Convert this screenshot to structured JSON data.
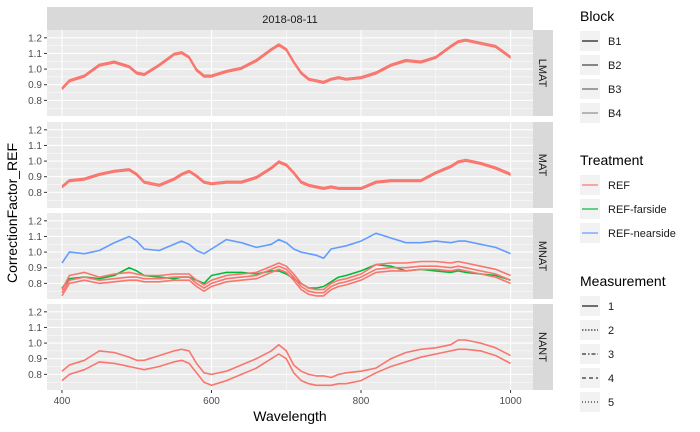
{
  "chart_data": {
    "type": "line",
    "facet_top_label": "2018-08-11",
    "xlabel": "Wavelength",
    "ylabel": "CorrectionFactor_REF",
    "xlim": [
      380,
      1030
    ],
    "ylim": [
      0.7,
      1.25
    ],
    "x_ticks": [
      400,
      600,
      800,
      1000
    ],
    "y_ticks": [
      0.8,
      0.9,
      1.0,
      1.1,
      1.2
    ],
    "y_tick_labels": [
      "0.8",
      "0.9",
      "1.0",
      "1.1",
      "1.2"
    ],
    "grid": true,
    "legend_position": "right",
    "legend": {
      "block": {
        "title": "Block",
        "items": [
          "B1",
          "B2",
          "B3",
          "B4"
        ]
      },
      "treatment": {
        "title": "Treatment",
        "items": [
          {
            "label": "REF",
            "color": "#F8766D"
          },
          {
            "label": "REF-farside",
            "color": "#00BA38"
          },
          {
            "label": "REF-nearside",
            "color": "#619CFF"
          }
        ]
      },
      "measurement": {
        "title": "Measurement",
        "items": [
          "1",
          "2",
          "3",
          "4",
          "5"
        ]
      }
    },
    "wavelengths": [
      400,
      410,
      430,
      450,
      470,
      490,
      500,
      510,
      530,
      550,
      560,
      570,
      580,
      590,
      600,
      620,
      640,
      660,
      680,
      690,
      700,
      710,
      720,
      730,
      740,
      750,
      760,
      770,
      780,
      800,
      820,
      840,
      860,
      880,
      900,
      920,
      930,
      940,
      960,
      980,
      1000
    ],
    "panels": [
      {
        "strip": "LMAT",
        "series": [
          {
            "treatment": "REF",
            "color": "#F8766D",
            "values": [
              0.88,
              0.93,
              0.96,
              1.03,
              1.05,
              1.02,
              0.98,
              0.97,
              1.03,
              1.1,
              1.11,
              1.08,
              1.0,
              0.96,
              0.96,
              0.99,
              1.01,
              1.06,
              1.13,
              1.16,
              1.13,
              1.05,
              0.98,
              0.94,
              0.93,
              0.92,
              0.94,
              0.95,
              0.94,
              0.95,
              0.98,
              1.03,
              1.06,
              1.05,
              1.08,
              1.15,
              1.18,
              1.19,
              1.17,
              1.15,
              1.08
            ]
          },
          {
            "treatment": "REF",
            "color": "#F8766D",
            "values": [
              0.87,
              0.92,
              0.95,
              1.02,
              1.04,
              1.01,
              0.97,
              0.96,
              1.02,
              1.09,
              1.1,
              1.07,
              0.99,
              0.95,
              0.95,
              0.98,
              1.0,
              1.05,
              1.12,
              1.15,
              1.12,
              1.04,
              0.97,
              0.93,
              0.92,
              0.91,
              0.93,
              0.94,
              0.93,
              0.94,
              0.97,
              1.02,
              1.05,
              1.04,
              1.07,
              1.14,
              1.17,
              1.18,
              1.16,
              1.14,
              1.07
            ]
          }
        ]
      },
      {
        "strip": "MAT",
        "series": [
          {
            "treatment": "REF",
            "color": "#F8766D",
            "values": [
              0.84,
              0.88,
              0.89,
              0.92,
              0.94,
              0.95,
              0.92,
              0.87,
              0.85,
              0.89,
              0.92,
              0.94,
              0.91,
              0.87,
              0.86,
              0.87,
              0.87,
              0.9,
              0.96,
              1.0,
              0.98,
              0.93,
              0.87,
              0.85,
              0.84,
              0.83,
              0.84,
              0.83,
              0.83,
              0.83,
              0.87,
              0.88,
              0.88,
              0.88,
              0.93,
              0.97,
              1.0,
              1.01,
              0.99,
              0.96,
              0.92
            ]
          },
          {
            "treatment": "REF",
            "color": "#F8766D",
            "values": [
              0.83,
              0.87,
              0.88,
              0.91,
              0.93,
              0.94,
              0.91,
              0.86,
              0.84,
              0.88,
              0.91,
              0.93,
              0.9,
              0.86,
              0.85,
              0.86,
              0.86,
              0.89,
              0.95,
              0.99,
              0.97,
              0.92,
              0.86,
              0.84,
              0.83,
              0.82,
              0.83,
              0.82,
              0.82,
              0.82,
              0.86,
              0.87,
              0.87,
              0.87,
              0.92,
              0.96,
              0.99,
              1.0,
              0.98,
              0.95,
              0.91
            ]
          }
        ]
      },
      {
        "strip": "MNAT",
        "series": [
          {
            "treatment": "REF-nearside",
            "color": "#619CFF",
            "values": [
              0.93,
              1.0,
              0.99,
              1.01,
              1.06,
              1.1,
              1.07,
              1.02,
              1.01,
              1.05,
              1.07,
              1.05,
              1.01,
              0.99,
              1.02,
              1.08,
              1.06,
              1.03,
              1.05,
              1.08,
              1.06,
              1.02,
              1.0,
              0.99,
              0.98,
              0.96,
              1.02,
              1.03,
              1.04,
              1.07,
              1.12,
              1.09,
              1.06,
              1.06,
              1.07,
              1.06,
              1.07,
              1.07,
              1.05,
              1.03,
              0.99
            ]
          },
          {
            "treatment": "REF-farside",
            "color": "#00BA38",
            "values": [
              0.77,
              0.83,
              0.84,
              0.83,
              0.85,
              0.9,
              0.88,
              0.85,
              0.84,
              0.83,
              0.84,
              0.84,
              0.82,
              0.8,
              0.85,
              0.87,
              0.87,
              0.86,
              0.88,
              0.88,
              0.86,
              0.83,
              0.8,
              0.77,
              0.77,
              0.78,
              0.81,
              0.84,
              0.85,
              0.88,
              0.92,
              0.91,
              0.88,
              0.89,
              0.88,
              0.87,
              0.88,
              0.87,
              0.86,
              0.85,
              0.82
            ]
          },
          {
            "treatment": "REF",
            "color": "#F8766D",
            "values": [
              0.76,
              0.85,
              0.87,
              0.84,
              0.86,
              0.87,
              0.86,
              0.85,
              0.85,
              0.86,
              0.86,
              0.86,
              0.82,
              0.79,
              0.82,
              0.85,
              0.86,
              0.87,
              0.91,
              0.93,
              0.91,
              0.86,
              0.8,
              0.77,
              0.76,
              0.76,
              0.8,
              0.82,
              0.83,
              0.86,
              0.92,
              0.93,
              0.93,
              0.94,
              0.94,
              0.93,
              0.94,
              0.93,
              0.91,
              0.89,
              0.85
            ]
          },
          {
            "treatment": "REF",
            "color": "#F8766D",
            "values": [
              0.74,
              0.82,
              0.84,
              0.82,
              0.83,
              0.84,
              0.84,
              0.83,
              0.83,
              0.84,
              0.84,
              0.84,
              0.8,
              0.77,
              0.8,
              0.83,
              0.84,
              0.85,
              0.89,
              0.91,
              0.89,
              0.84,
              0.78,
              0.75,
              0.74,
              0.74,
              0.78,
              0.8,
              0.81,
              0.84,
              0.89,
              0.9,
              0.9,
              0.91,
              0.91,
              0.9,
              0.91,
              0.9,
              0.88,
              0.86,
              0.82
            ]
          },
          {
            "treatment": "REF",
            "color": "#F8766D",
            "values": [
              0.72,
              0.8,
              0.82,
              0.8,
              0.81,
              0.82,
              0.82,
              0.81,
              0.81,
              0.82,
              0.82,
              0.82,
              0.78,
              0.75,
              0.78,
              0.81,
              0.82,
              0.83,
              0.87,
              0.89,
              0.87,
              0.82,
              0.76,
              0.73,
              0.72,
              0.72,
              0.76,
              0.78,
              0.79,
              0.82,
              0.87,
              0.88,
              0.88,
              0.89,
              0.89,
              0.88,
              0.89,
              0.88,
              0.86,
              0.84,
              0.8
            ]
          }
        ]
      },
      {
        "strip": "NANT",
        "series": [
          {
            "treatment": "REF",
            "color": "#F8766D",
            "values": [
              0.82,
              0.86,
              0.89,
              0.95,
              0.94,
              0.91,
              0.89,
              0.89,
              0.92,
              0.95,
              0.96,
              0.95,
              0.87,
              0.81,
              0.8,
              0.82,
              0.86,
              0.9,
              0.95,
              0.99,
              0.95,
              0.86,
              0.82,
              0.8,
              0.79,
              0.79,
              0.78,
              0.8,
              0.81,
              0.82,
              0.84,
              0.9,
              0.94,
              0.96,
              0.97,
              0.99,
              1.02,
              1.02,
              1.0,
              0.97,
              0.92
            ]
          },
          {
            "treatment": "REF",
            "color": "#F8766D",
            "values": [
              0.76,
              0.8,
              0.83,
              0.88,
              0.87,
              0.85,
              0.84,
              0.83,
              0.85,
              0.88,
              0.89,
              0.87,
              0.81,
              0.75,
              0.73,
              0.76,
              0.8,
              0.84,
              0.9,
              0.93,
              0.9,
              0.81,
              0.76,
              0.74,
              0.73,
              0.73,
              0.73,
              0.74,
              0.74,
              0.76,
              0.81,
              0.85,
              0.88,
              0.91,
              0.93,
              0.95,
              0.96,
              0.96,
              0.95,
              0.92,
              0.87
            ]
          }
        ]
      }
    ]
  }
}
